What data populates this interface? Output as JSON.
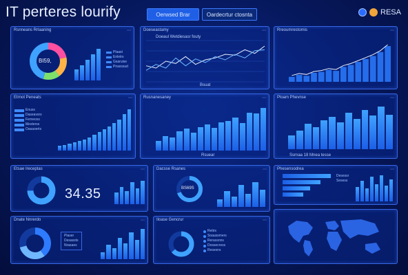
{
  "app": {
    "title": "IT perteres lourify"
  },
  "tabs": [
    {
      "label": "Oerwsed Brar",
      "active": true
    },
    {
      "label": "Oardecrtur ctosnta",
      "active": false
    }
  ],
  "header_right": {
    "brand": "RESA",
    "icons": [
      "user-icon",
      "avatar-icon"
    ]
  },
  "colors": {
    "accent": "#3fa2ff",
    "panel_border": "#3668e8",
    "background": "#06175a"
  },
  "panels": {
    "p1": {
      "title": "Rsnneans Rrlaaning",
      "donut_label": "BI59,",
      "legend": [
        "Plaast",
        "Enletrs",
        "Gsaruise",
        "Pnasssud"
      ]
    },
    "p2": {
      "title": "Doeseastamy",
      "subtitle": "Doeaul Wetdiesasr fouty",
      "footer": "Bsuat"
    },
    "p3": {
      "title": "Rreoumrestomis"
    },
    "p4": {
      "title": "Etrnot Peneats",
      "legend": [
        "Enuss",
        "Daseavsrs",
        "Ferneoss",
        "Mesterss",
        "Oasaoerts"
      ]
    },
    "p5": {
      "title": "Rusnanesaney",
      "footer": "Rsuear"
    },
    "p6": {
      "title": "Ploam Phevnse",
      "footer": "Ssrnaa 18 Mnea tesse"
    },
    "p7": {
      "title": "Etsae Ireceptas",
      "big_number": "34.35"
    },
    "p8": {
      "title": "Dacsse Rsanes",
      "donut_label": "BS69S"
    },
    "p9": {
      "title": "Phesensodrea",
      "legend": [
        "Desessr",
        "Sesess"
      ]
    },
    "p10": {
      "title": "Dnate Nnrerdo",
      "legend": [
        "Plaser",
        "Desassts",
        "Nrasaes"
      ]
    },
    "p11": {
      "title": "Iloase Gencrur",
      "legend": [
        "Retirs",
        "Soaussmers",
        "Rerassnns",
        "Dossecress",
        "Resesns"
      ]
    },
    "p12": {
      "title": ""
    }
  },
  "chart_data": [
    {
      "type": "bar",
      "values": [
        30,
        40,
        55,
        70,
        85
      ],
      "title": ""
    },
    {
      "type": "line",
      "series": [
        {
          "values": [
            35,
            30,
            45,
            40,
            55,
            38,
            48,
            52,
            60,
            58,
            70,
            62,
            78
          ]
        },
        {
          "values": [
            25,
            38,
            30,
            52,
            35,
            50,
            42,
            55,
            48,
            60,
            52,
            68,
            70
          ]
        }
      ]
    },
    {
      "type": "area",
      "values": [
        10,
        14,
        12,
        18,
        20,
        24,
        22,
        30,
        34,
        40,
        46,
        52,
        60,
        72
      ]
    },
    {
      "type": "bar",
      "values": [
        10,
        12,
        14,
        18,
        20,
        24,
        28,
        34,
        40,
        46,
        52,
        58,
        66,
        78,
        88
      ]
    },
    {
      "type": "bar",
      "values": [
        20,
        30,
        28,
        40,
        46,
        38,
        50,
        55,
        48,
        60,
        62,
        70,
        58,
        80,
        78,
        90
      ]
    },
    {
      "type": "bar",
      "values": [
        30,
        40,
        55,
        48,
        62,
        70,
        58,
        78,
        66,
        84,
        72,
        92,
        74
      ]
    },
    {
      "type": "bar",
      "values": [
        40,
        60,
        45,
        75,
        55,
        80
      ]
    },
    {
      "type": "bar",
      "values": [
        25,
        55,
        35,
        75,
        45,
        85,
        60
      ]
    },
    {
      "type": "bar",
      "values": [
        70,
        55,
        40,
        30
      ]
    },
    {
      "type": "bar",
      "values": [
        50,
        70,
        45,
        85,
        60,
        90,
        55,
        75
      ]
    },
    {
      "type": "bar",
      "values": [
        20,
        40,
        30,
        60,
        45,
        75,
        55,
        85
      ]
    }
  ]
}
